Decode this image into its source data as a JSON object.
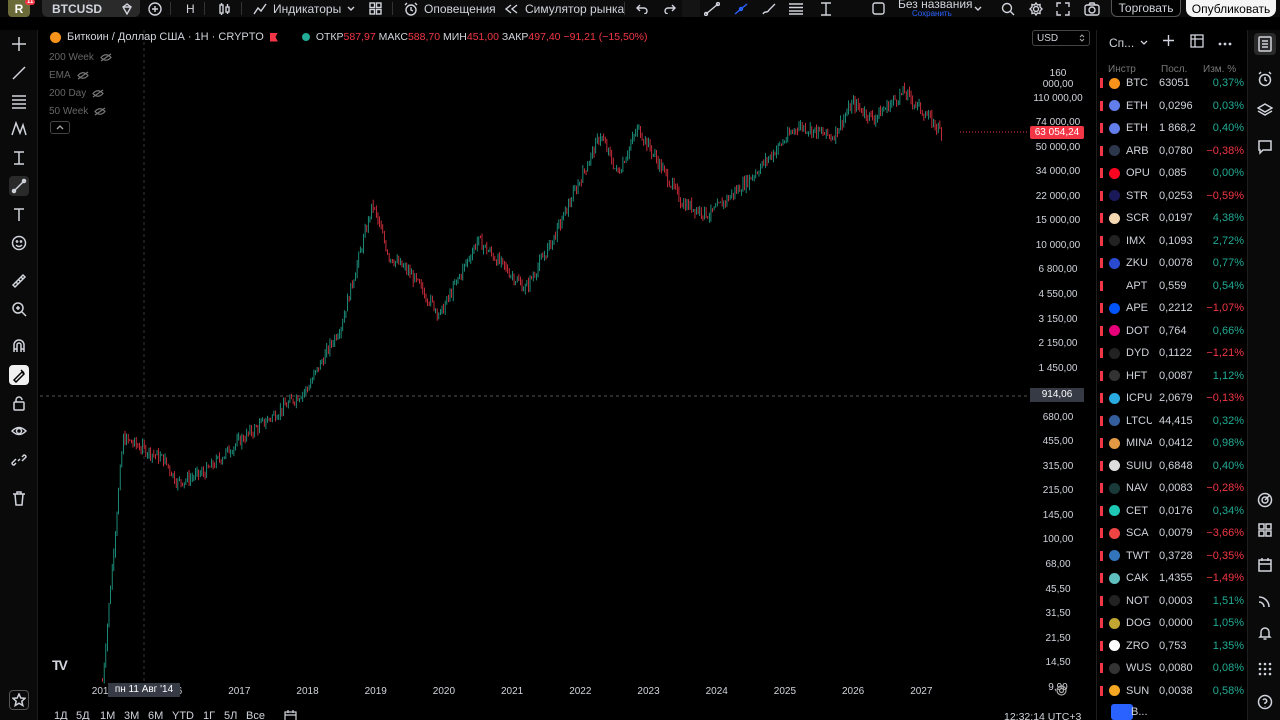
{
  "topbar": {
    "avatar_letter": "R",
    "avatar_badge": "11",
    "symbol": "BTCUSD",
    "interval": "Н",
    "indicators": "Индикаторы",
    "alerts": "Оповещения",
    "replay": "Симулятор рынка",
    "layout_name": "Без названия",
    "layout_save": "Сохранить",
    "trade": "Торговать",
    "publish": "Опубликовать"
  },
  "legend": {
    "title": "Биткоин / Доллар США · 1Н · CRYPTO",
    "o_label": "ОТКР",
    "o": "587,97",
    "h_label": "МАКС",
    "h": "588,70",
    "l_label": "МИН",
    "l": "451,00",
    "c_label": "ЗАКР",
    "c": "497,40",
    "change": "−91,21 (−15,50%)"
  },
  "indicators": [
    "200 Week",
    "EMA",
    "200 Day",
    "50 Week"
  ],
  "price_axis": {
    "currency": "USD",
    "labels": [
      "160 000,00",
      "110 000,00",
      "74 000,00",
      "50 000,00",
      "34 000,00",
      "22 000,00",
      "15 000,00",
      "10 000,00",
      "6 800,00",
      "4 550,00",
      "3 150,00",
      "2 150,00",
      "1 450,00",
      "1 000,00",
      "680,00",
      "455,00",
      "315,00",
      "215,00",
      "145,00",
      "100,00",
      "68,00",
      "45,50",
      "31,50",
      "21,50",
      "14,50",
      "9,90"
    ],
    "current_price": "63 054,24",
    "crosshair_price": "914,06"
  },
  "time_axis": {
    "years": [
      "2015",
      "2016",
      "2017",
      "2018",
      "2019",
      "2020",
      "2021",
      "2022",
      "2023",
      "2024",
      "2025",
      "2026",
      "2027"
    ],
    "crosshair_date": "пн 11 Авг '14"
  },
  "chart_data": {
    "type": "candlestick",
    "symbol": "BTCUSD",
    "scale": "log",
    "note_series": [
      {
        "year": 2014.0,
        "price": 9
      },
      {
        "year": 2014.3,
        "price": 450
      },
      {
        "year": 2014.9,
        "price": 320
      },
      {
        "year": 2015.1,
        "price": 220
      },
      {
        "year": 2015.5,
        "price": 260
      },
      {
        "year": 2016.0,
        "price": 430
      },
      {
        "year": 2016.5,
        "price": 650
      },
      {
        "year": 2017.0,
        "price": 1000
      },
      {
        "year": 2017.5,
        "price": 2800
      },
      {
        "year": 2017.96,
        "price": 19500
      },
      {
        "year": 2018.2,
        "price": 8500
      },
      {
        "year": 2018.5,
        "price": 6500
      },
      {
        "year": 2018.95,
        "price": 3300
      },
      {
        "year": 2019.5,
        "price": 11000
      },
      {
        "year": 2020.2,
        "price": 5000
      },
      {
        "year": 2020.6,
        "price": 11000
      },
      {
        "year": 2021.3,
        "price": 60000
      },
      {
        "year": 2021.55,
        "price": 32000
      },
      {
        "year": 2021.85,
        "price": 67000
      },
      {
        "year": 2022.5,
        "price": 20000
      },
      {
        "year": 2022.9,
        "price": 16500
      },
      {
        "year": 2023.5,
        "price": 30000
      },
      {
        "year": 2024.2,
        "price": 70000
      },
      {
        "year": 2024.7,
        "price": 58000
      },
      {
        "year": 2025.0,
        "price": 100000
      },
      {
        "year": 2025.3,
        "price": 78000
      },
      {
        "year": 2025.75,
        "price": 120000
      },
      {
        "year": 2026.0,
        "price": 90000
      },
      {
        "year": 2026.3,
        "price": 63054
      }
    ]
  },
  "bottombar": {
    "ranges": [
      "1Д",
      "5Д",
      "1М",
      "3М",
      "6М",
      "YTD",
      "1Г",
      "5Л",
      "Все"
    ],
    "time": "12:32:14 UTC+3"
  },
  "watchlist": {
    "title": "Сп...",
    "col_symbol": "Инстр",
    "col_last": "Посл.",
    "col_change": "Изм. %",
    "rows": [
      {
        "sym": "BTC",
        "last": "63051",
        "chg": "0,37%",
        "dir": "pos",
        "color": "#f7931a"
      },
      {
        "sym": "ETH",
        "last": "0,0296",
        "chg": "0,03%",
        "dir": "pos",
        "color": "#627eea"
      },
      {
        "sym": "ETH",
        "last": "1 868,2",
        "chg": "0,40%",
        "dir": "pos",
        "color": "#627eea"
      },
      {
        "sym": "ARB",
        "last": "0,0780",
        "chg": "−0,38%",
        "dir": "neg",
        "color": "#2d374b"
      },
      {
        "sym": "OPU",
        "last": "0,085",
        "chg": "0,00%",
        "dir": "pos",
        "color": "#ff0420"
      },
      {
        "sym": "STR",
        "last": "0,0253",
        "chg": "−0,59%",
        "dir": "neg",
        "color": "#1a1a5a"
      },
      {
        "sym": "SCR",
        "last": "0,0197",
        "chg": "4,38%",
        "dir": "pos",
        "color": "#f5d7b1"
      },
      {
        "sym": "IMX",
        "last": "0,1093",
        "chg": "2,72%",
        "dir": "pos",
        "color": "#222"
      },
      {
        "sym": "ZKU",
        "last": "0,0078",
        "chg": "0,77%",
        "dir": "pos",
        "color": "#2a4bcf"
      },
      {
        "sym": "APT",
        "last": "0,559",
        "chg": "0,54%",
        "dir": "pos",
        "color": "#000"
      },
      {
        "sym": "APE",
        "last": "0,2212",
        "chg": "−1,07%",
        "dir": "neg",
        "color": "#0054f9"
      },
      {
        "sym": "DOT",
        "last": "0,764",
        "chg": "0,66%",
        "dir": "pos",
        "color": "#e6007a"
      },
      {
        "sym": "DYD",
        "last": "0,1122",
        "chg": "−1,21%",
        "dir": "neg",
        "color": "#222"
      },
      {
        "sym": "HFT",
        "last": "0,0087",
        "chg": "1,12%",
        "dir": "pos",
        "color": "#333"
      },
      {
        "sym": "ICPU",
        "last": "2,0679",
        "chg": "−0,13%",
        "dir": "neg",
        "color": "#29abe2"
      },
      {
        "sym": "LTCU",
        "last": "44,415",
        "chg": "0,32%",
        "dir": "pos",
        "color": "#345d9d"
      },
      {
        "sym": "MINA",
        "last": "0,0412",
        "chg": "0,98%",
        "dir": "pos",
        "color": "#e39844"
      },
      {
        "sym": "SUIU",
        "last": "0,6848",
        "chg": "0,40%",
        "dir": "pos",
        "color": "#ddd"
      },
      {
        "sym": "NAV",
        "last": "0,0083",
        "chg": "−0,28%",
        "dir": "neg",
        "color": "#1a3a3a"
      },
      {
        "sym": "CET",
        "last": "0,0176",
        "chg": "0,34%",
        "dir": "pos",
        "color": "#1ec8b4"
      },
      {
        "sym": "SCA",
        "last": "0,0079",
        "chg": "−3,66%",
        "dir": "neg",
        "color": "#e44"
      },
      {
        "sym": "TWT",
        "last": "0,3728",
        "chg": "−0,35%",
        "dir": "neg",
        "color": "#3375bb"
      },
      {
        "sym": "CAK",
        "last": "1,4355",
        "chg": "−1,49%",
        "dir": "neg",
        "color": "#5fbfbf"
      },
      {
        "sym": "NOT",
        "last": "0,0003",
        "chg": "1,51%",
        "dir": "pos",
        "color": "#222"
      },
      {
        "sym": "DOG",
        "last": "0,0000",
        "chg": "1,05%",
        "dir": "pos",
        "color": "#c2a633"
      },
      {
        "sym": "ZRO",
        "last": "0,753",
        "chg": "1,35%",
        "dir": "pos",
        "color": "#fff"
      },
      {
        "sym": "WUS",
        "last": "0,0080",
        "chg": "0,08%",
        "dir": "pos",
        "color": "#333"
      },
      {
        "sym": "SUN",
        "last": "0,0038",
        "chg": "0,58%",
        "dir": "pos",
        "color": "#f5a623"
      }
    ],
    "bottom_label": "В..."
  },
  "colors": {
    "up": "#22ab94",
    "down": "#f23645",
    "accent": "#2962ff"
  }
}
